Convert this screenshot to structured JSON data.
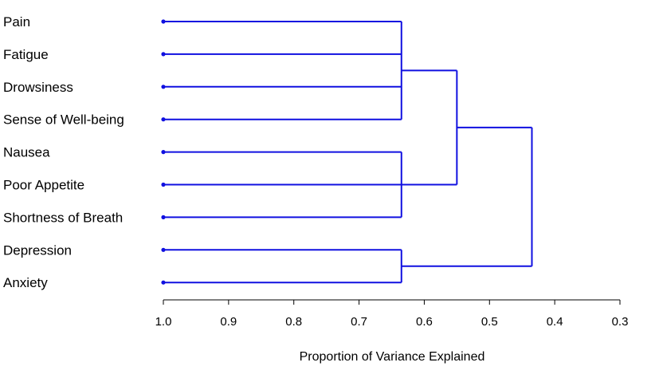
{
  "chart_data": {
    "type": "dendrogram",
    "orientation": "horizontal",
    "title": "",
    "xlabel": "Proportion of Variance Explained",
    "ylabel": "",
    "x_axis_reversed": true,
    "xlim": [
      1.0,
      0.3
    ],
    "xticks": [
      "1.0",
      "0.9",
      "0.8",
      "0.7",
      "0.6",
      "0.5",
      "0.4",
      "0.3"
    ],
    "leaves": [
      "Pain",
      "Fatigue",
      "Drowsiness",
      "Sense of Well-being",
      "Nausea",
      "Poor Appetite",
      "Shortness of Breath",
      "Depression",
      "Anxiety"
    ],
    "merges": [
      {
        "members": [
          "Pain",
          "Fatigue",
          "Drowsiness",
          "Sense of Well-being"
        ],
        "height": 0.635
      },
      {
        "members": [
          "Nausea",
          "Poor Appetite",
          "Shortness of Breath"
        ],
        "height": 0.635
      },
      {
        "members": [
          "Depression",
          "Anxiety"
        ],
        "height": 0.635
      },
      {
        "members": [
          "Pain",
          "Fatigue",
          "Drowsiness",
          "Sense of Well-being",
          "Nausea",
          "Poor Appetite",
          "Shortness of Breath"
        ],
        "height": 0.55
      },
      {
        "members": [
          "Pain",
          "Fatigue",
          "Drowsiness",
          "Sense of Well-being",
          "Nausea",
          "Poor Appetite",
          "Shortness of Breath",
          "Depression",
          "Anxiety"
        ],
        "height": 0.435
      }
    ],
    "line_color": "#1010e0",
    "axis_color": "#000000",
    "grid": false
  }
}
